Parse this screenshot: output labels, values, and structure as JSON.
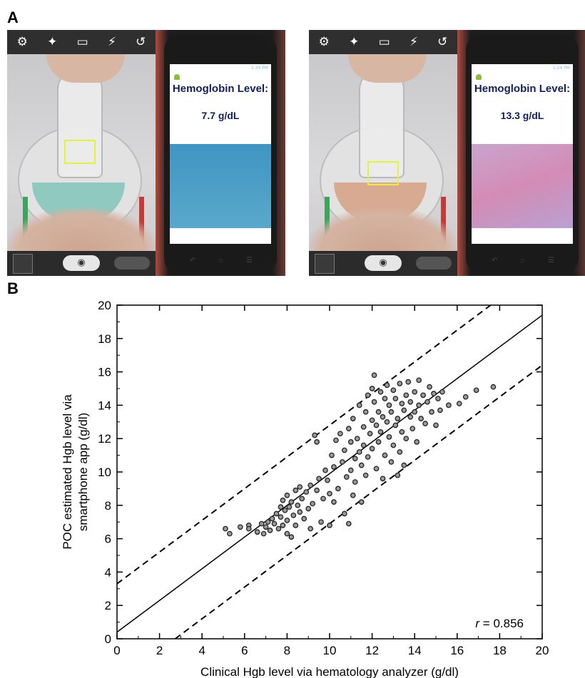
{
  "figure": {
    "panel_a_label": "A",
    "panel_b_label": "B"
  },
  "photos": [
    {
      "camera_icons": [
        "settings-icon",
        "magic-wand-icon",
        "aspect-icon",
        "flash-off-icon",
        "switch-camera-icon"
      ],
      "phone_status": "1:30 PM",
      "hemoglobin_label": "Hemoglobin Level:",
      "hemoglobin_value": "7.7 g/dL",
      "liquid_color": "#8fc9bf",
      "swatch_color": "#4a9bc4"
    },
    {
      "camera_icons": [
        "settings-icon",
        "magic-wand-icon",
        "aspect-icon",
        "flash-off-icon",
        "switch-camera-icon"
      ],
      "phone_status": "1:24 PM",
      "hemoglobin_label": "Hemoglobin Level:",
      "hemoglobin_value": "13.3 g/dL",
      "liquid_color": "#d9aa92",
      "swatch_color": "#c98fb8"
    }
  ],
  "chart_data": {
    "type": "scatter",
    "xlabel": "Clinical Hgb level via hematology analyzer (g/dl)",
    "ylabel_line1": "POC estimated Hgb level via",
    "ylabel_line2": "smartphone app (g/dl)",
    "xlim": [
      0,
      20
    ],
    "ylim": [
      0,
      20
    ],
    "x_ticks": [
      0,
      2,
      4,
      6,
      8,
      10,
      12,
      14,
      16,
      18,
      20
    ],
    "y_ticks": [
      0,
      2,
      4,
      6,
      8,
      10,
      12,
      14,
      16,
      18,
      20
    ],
    "annotation_symbol": "r",
    "annotation_text": " = 0.856",
    "fit_line": {
      "intercept": 0.4,
      "slope": 0.95
    },
    "limit_lines": [
      {
        "intercept": 3.3,
        "slope": 0.95
      },
      {
        "intercept": -2.6,
        "slope": 0.95
      }
    ],
    "points": [
      [
        5.1,
        6.6
      ],
      [
        5.3,
        6.3
      ],
      [
        5.8,
        6.7
      ],
      [
        6.2,
        6.8
      ],
      [
        6.2,
        6.6
      ],
      [
        6.6,
        6.4
      ],
      [
        6.8,
        6.9
      ],
      [
        6.9,
        6.3
      ],
      [
        7.0,
        6.7
      ],
      [
        7.1,
        7.0
      ],
      [
        7.2,
        6.5
      ],
      [
        7.3,
        7.2
      ],
      [
        7.4,
        6.9
      ],
      [
        7.5,
        7.5
      ],
      [
        7.6,
        6.6
      ],
      [
        7.7,
        7.9
      ],
      [
        7.7,
        7.3
      ],
      [
        7.8,
        8.3
      ],
      [
        7.8,
        6.8
      ],
      [
        7.9,
        7.7
      ],
      [
        8.0,
        8.6
      ],
      [
        8.0,
        7.1
      ],
      [
        8.0,
        6.3
      ],
      [
        8.1,
        7.9
      ],
      [
        8.2,
        8.2
      ],
      [
        8.2,
        6.1
      ],
      [
        8.3,
        7.4
      ],
      [
        8.4,
        8.9
      ],
      [
        8.4,
        6.8
      ],
      [
        8.5,
        8.0
      ],
      [
        8.6,
        7.6
      ],
      [
        8.6,
        9.1
      ],
      [
        8.7,
        8.4
      ],
      [
        8.8,
        7.2
      ],
      [
        8.9,
        8.8
      ],
      [
        9.0,
        7.8
      ],
      [
        9.1,
        9.2
      ],
      [
        9.1,
        6.6
      ],
      [
        9.2,
        8.1
      ],
      [
        9.3,
        12.2
      ],
      [
        9.4,
        11.8
      ],
      [
        9.4,
        8.9
      ],
      [
        9.5,
        9.6
      ],
      [
        9.6,
        7.0
      ],
      [
        9.7,
        8.4
      ],
      [
        9.8,
        10.1
      ],
      [
        9.9,
        9.5
      ],
      [
        10.0,
        6.8
      ],
      [
        10.0,
        8.7
      ],
      [
        10.1,
        11.0
      ],
      [
        10.2,
        10.3
      ],
      [
        10.2,
        8.2
      ],
      [
        10.3,
        11.9
      ],
      [
        10.4,
        9.0
      ],
      [
        10.5,
        12.3
      ],
      [
        10.6,
        10.6
      ],
      [
        10.7,
        7.5
      ],
      [
        10.7,
        11.3
      ],
      [
        10.8,
        9.7
      ],
      [
        10.9,
        6.9
      ],
      [
        10.9,
        12.6
      ],
      [
        11.0,
        10.1
      ],
      [
        11.0,
        11.8
      ],
      [
        11.1,
        8.6
      ],
      [
        11.1,
        13.2
      ],
      [
        11.2,
        10.8
      ],
      [
        11.2,
        9.4
      ],
      [
        11.3,
        12.0
      ],
      [
        11.4,
        11.2
      ],
      [
        11.4,
        14.0
      ],
      [
        11.5,
        10.4
      ],
      [
        11.5,
        8.2
      ],
      [
        11.6,
        12.7
      ],
      [
        11.6,
        11.6
      ],
      [
        11.7,
        13.6
      ],
      [
        11.7,
        9.8
      ],
      [
        11.8,
        14.6
      ],
      [
        11.8,
        10.9
      ],
      [
        11.9,
        12.3
      ],
      [
        12.0,
        15.0
      ],
      [
        12.0,
        13.1
      ],
      [
        12.0,
        11.4
      ],
      [
        12.1,
        15.8
      ],
      [
        12.1,
        14.2
      ],
      [
        12.2,
        12.8
      ],
      [
        12.2,
        10.2
      ],
      [
        12.3,
        13.6
      ],
      [
        12.3,
        11.8
      ],
      [
        12.4,
        14.8
      ],
      [
        12.4,
        12.4
      ],
      [
        12.5,
        13.3
      ],
      [
        12.5,
        9.6
      ],
      [
        12.6,
        14.4
      ],
      [
        12.6,
        11.0
      ],
      [
        12.7,
        13.0
      ],
      [
        12.7,
        15.2
      ],
      [
        12.8,
        12.1
      ],
      [
        12.8,
        14.0
      ],
      [
        12.9,
        10.6
      ],
      [
        12.9,
        13.6
      ],
      [
        13.0,
        14.9
      ],
      [
        13.0,
        11.6
      ],
      [
        13.1,
        12.8
      ],
      [
        13.1,
        14.4
      ],
      [
        13.2,
        9.8
      ],
      [
        13.2,
        13.2
      ],
      [
        13.3,
        15.3
      ],
      [
        13.3,
        11.2
      ],
      [
        13.4,
        14.1
      ],
      [
        13.4,
        12.4
      ],
      [
        13.5,
        13.7
      ],
      [
        13.5,
        10.4
      ],
      [
        13.6,
        14.6
      ],
      [
        13.6,
        12.0
      ],
      [
        13.7,
        15.4
      ],
      [
        13.8,
        13.3
      ],
      [
        13.8,
        14.2
      ],
      [
        13.9,
        12.6
      ],
      [
        14.0,
        14.8
      ],
      [
        14.0,
        13.6
      ],
      [
        14.1,
        11.8
      ],
      [
        14.2,
        15.5
      ],
      [
        14.2,
        14.0
      ],
      [
        14.3,
        13.2
      ],
      [
        14.4,
        14.6
      ],
      [
        14.5,
        12.9
      ],
      [
        14.6,
        14.2
      ],
      [
        14.7,
        15.1
      ],
      [
        14.8,
        13.6
      ],
      [
        14.9,
        14.7
      ],
      [
        15.0,
        12.8
      ],
      [
        15.1,
        14.4
      ],
      [
        15.2,
        13.7
      ],
      [
        15.3,
        14.8
      ],
      [
        15.6,
        14.0
      ],
      [
        16.1,
        14.1
      ],
      [
        16.4,
        14.5
      ],
      [
        16.9,
        14.9
      ],
      [
        17.7,
        15.1
      ]
    ]
  }
}
